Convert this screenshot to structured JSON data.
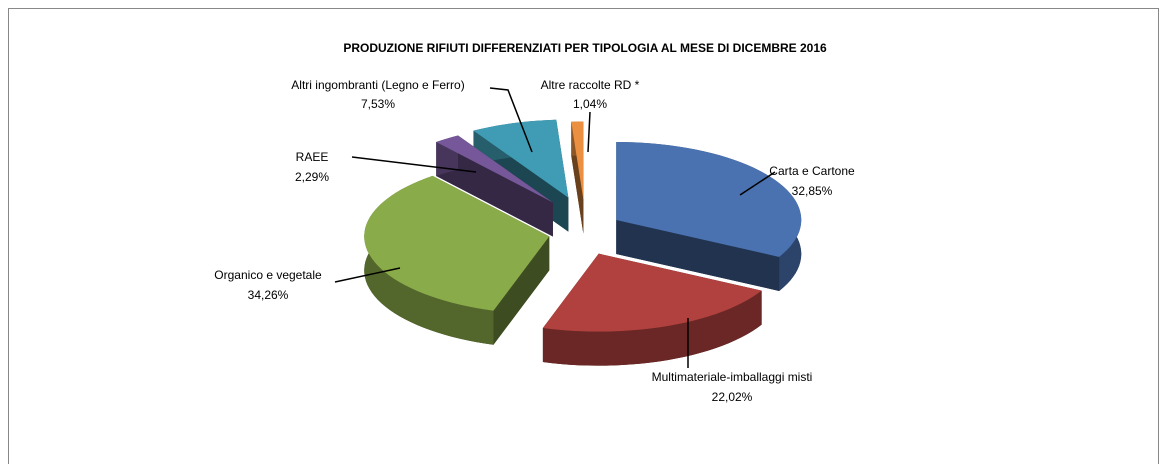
{
  "chart_data": {
    "type": "pie",
    "title": "PRODUZIONE RIFIUTI  DIFFERENZIATI PER TIPOLOGIA AL MESE DI DICEMBRE 2016",
    "categories": [
      "Carta e Cartone",
      "Multimateriale-imballaggi  misti",
      "Organico e vegetale",
      "RAEE",
      "Altri ingombranti  (Legno e Ferro)",
      "Altre raccolte RD *"
    ],
    "values": [
      32.85,
      22.02,
      34.26,
      2.29,
      7.53,
      1.04
    ],
    "value_labels": [
      "32,85%",
      "22,02%",
      "34,26%",
      "2,29%",
      "7,53%",
      "1,04%"
    ],
    "colors": [
      "#4a72b0",
      "#b0413e",
      "#8aab4a",
      "#76589a",
      "#3f9cb4",
      "#ea9040"
    ]
  }
}
